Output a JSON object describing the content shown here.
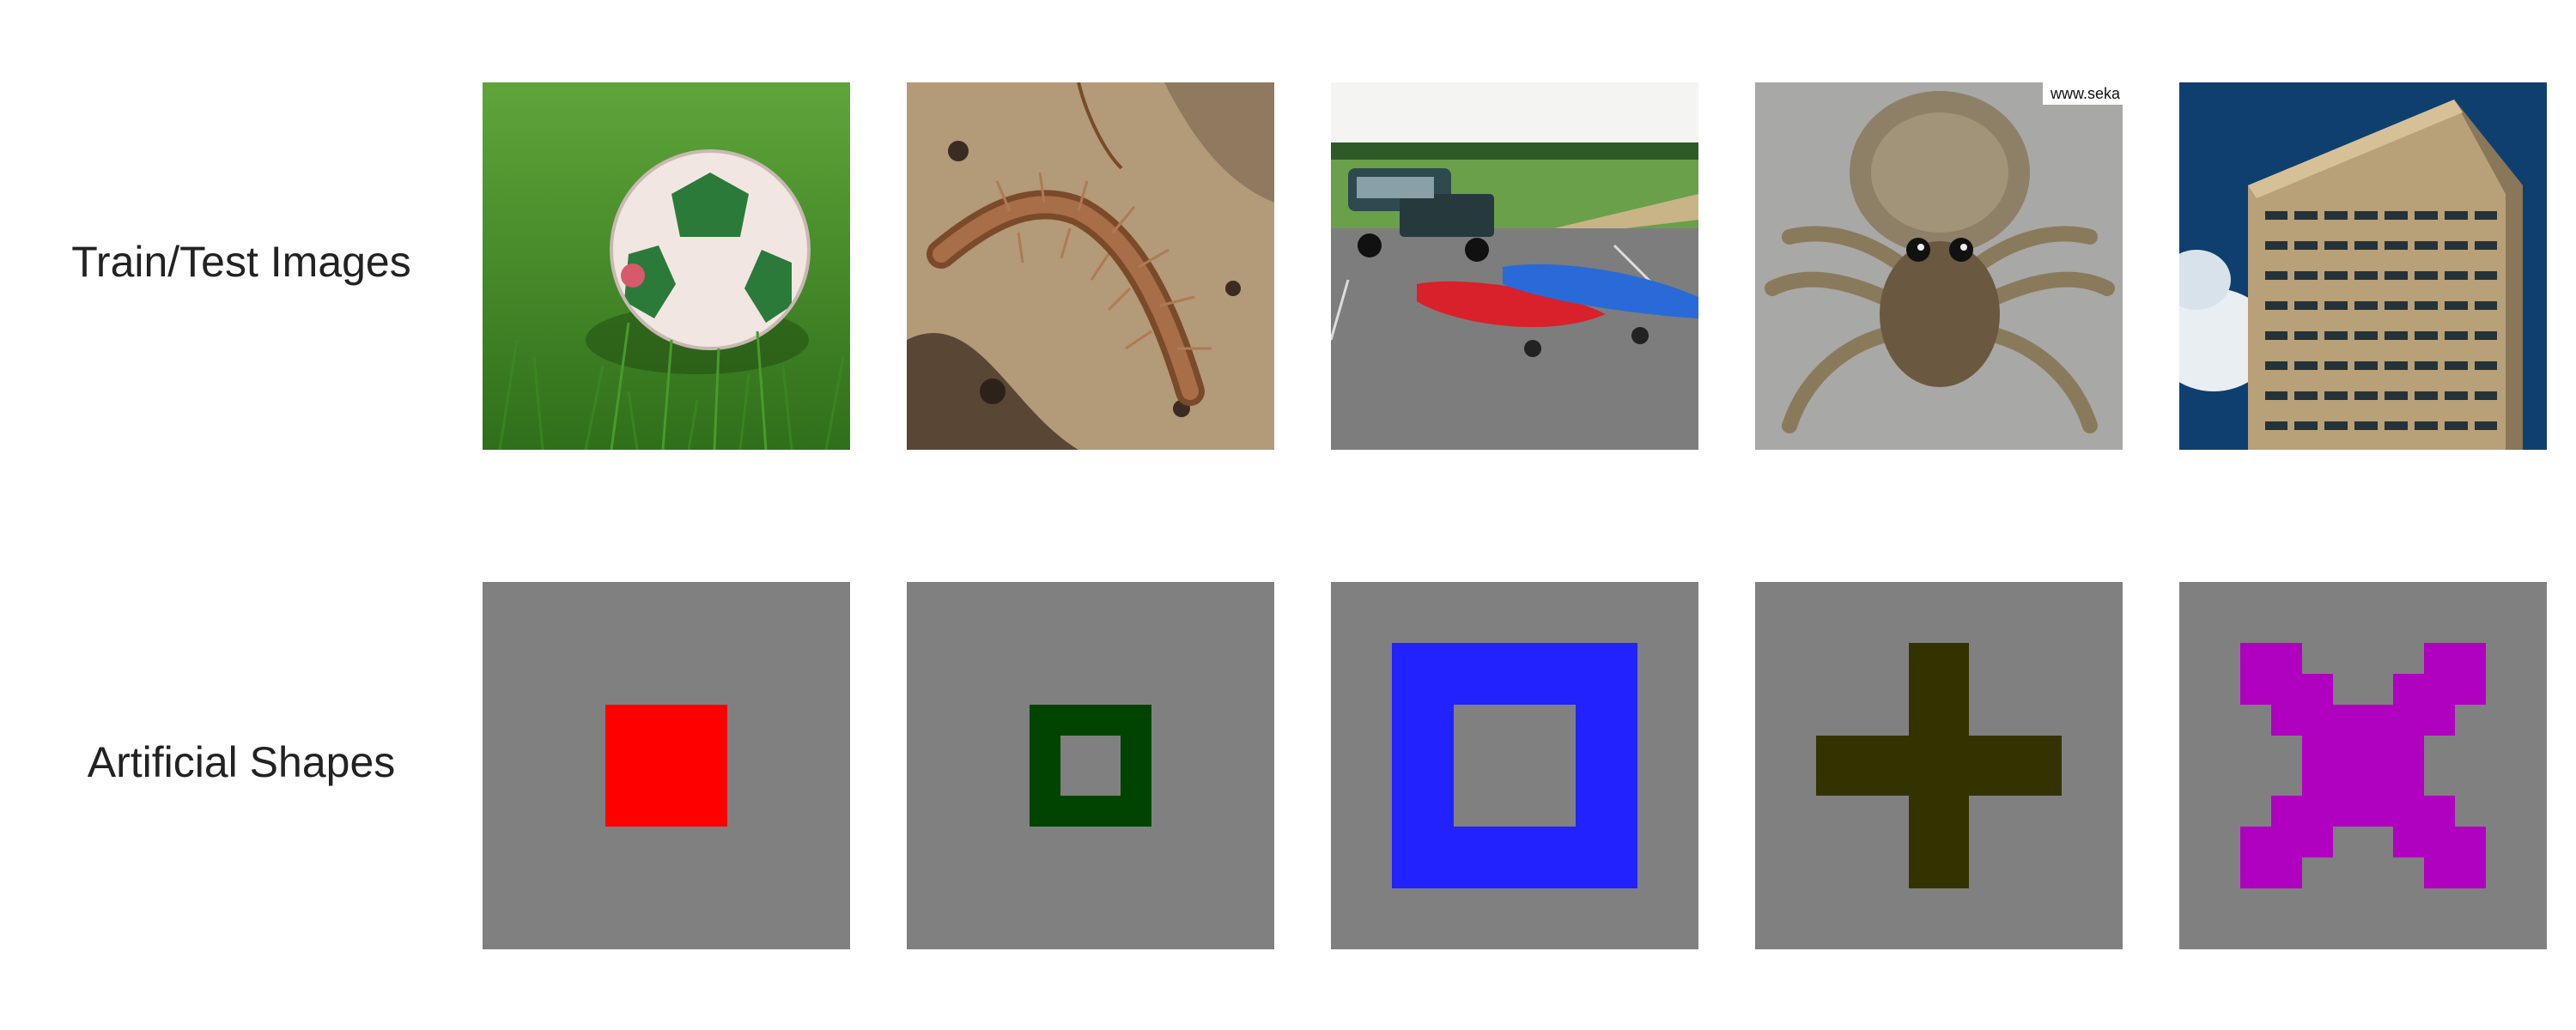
{
  "rows": {
    "top_label": "Train/Test Images",
    "bottom_label": "Artificial Shapes"
  },
  "photos": [
    {
      "icon": "soccer-ball-on-grass"
    },
    {
      "icon": "centipede-on-rock"
    },
    {
      "icon": "pickup-truck-with-kayaks"
    },
    {
      "icon": "wolf-spider-closeup",
      "watermark": "www.seka"
    },
    {
      "icon": "tall-office-building"
    }
  ],
  "shapes": [
    {
      "shape": "filled-square",
      "color": "#ff0000"
    },
    {
      "shape": "hollow-square-small",
      "color": "#004400"
    },
    {
      "shape": "hollow-square-large",
      "color": "#2222ff"
    },
    {
      "shape": "plus-cross",
      "color": "#333300"
    },
    {
      "shape": "x-cross",
      "color": "#b000c0"
    }
  ],
  "colors": {
    "shape_background": "#808080"
  }
}
